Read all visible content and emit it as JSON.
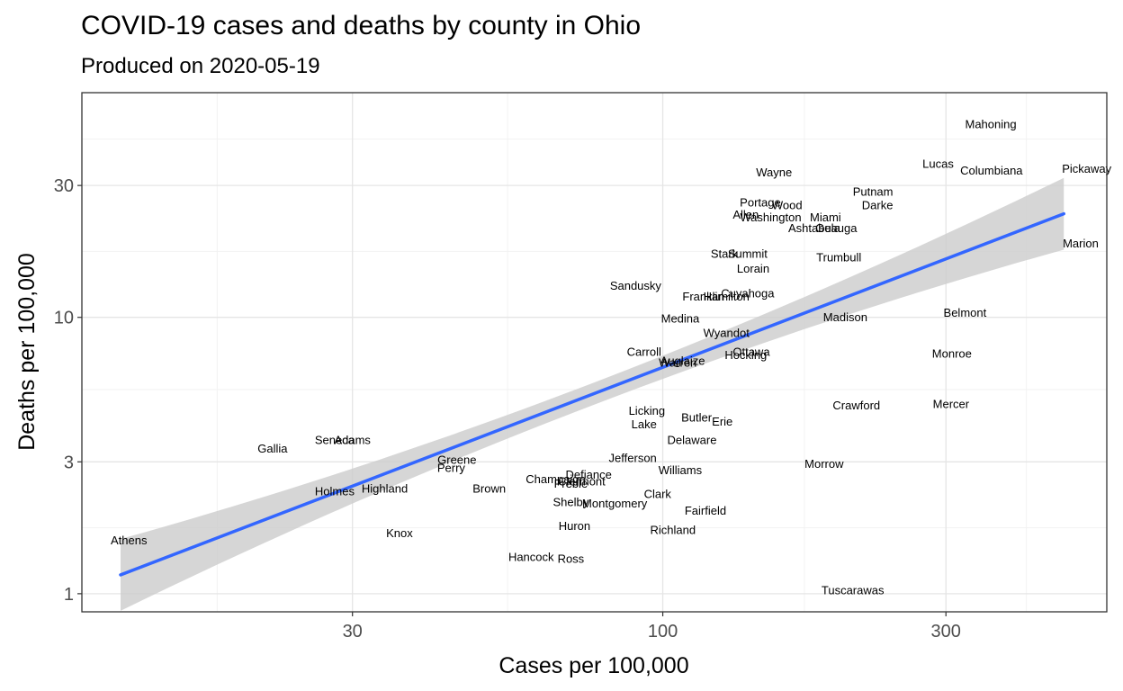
{
  "header": {
    "title": "COVID-19 cases and deaths by county in Ohio",
    "subtitle": "Produced on 2020-05-19"
  },
  "chart_data": {
    "type": "scatter",
    "title": "COVID-19 cases and deaths by county in Ohio",
    "subtitle": "Produced on 2020-05-19",
    "xlabel": "Cases per 100,000",
    "ylabel": "Deaths per 100,000",
    "x_scale": "log10",
    "y_scale": "log10",
    "xlim": [
      10.5,
      560
    ],
    "ylim": [
      0.86,
      65
    ],
    "x_ticks": [
      30,
      100,
      300
    ],
    "y_ticks": [
      1,
      3,
      10,
      30
    ],
    "grid": true,
    "legend": "none",
    "point_style": "county name labels",
    "trend": {
      "method": "linear fit on log-log scale",
      "color": "#3366ff",
      "band_color": "#cccccc",
      "start": [
        12.2,
        1.17
      ],
      "end": [
        474,
        23.7
      ]
    },
    "points": [
      {
        "name": "Mahoning",
        "x": 357,
        "y": 50
      },
      {
        "name": "Lucas",
        "x": 291,
        "y": 36
      },
      {
        "name": "Columbiana",
        "x": 358,
        "y": 34
      },
      {
        "name": "Pickaway",
        "x": 518,
        "y": 34.5
      },
      {
        "name": "Wayne",
        "x": 154,
        "y": 33.5
      },
      {
        "name": "Putnam",
        "x": 226,
        "y": 28.5
      },
      {
        "name": "Darke",
        "x": 230,
        "y": 25.5
      },
      {
        "name": "Portage",
        "x": 146,
        "y": 26
      },
      {
        "name": "Wood",
        "x": 162,
        "y": 25.5
      },
      {
        "name": "Allen",
        "x": 138,
        "y": 23.5
      },
      {
        "name": "Washington",
        "x": 152,
        "y": 23
      },
      {
        "name": "Miami",
        "x": 188,
        "y": 23
      },
      {
        "name": "Ashtabula",
        "x": 180,
        "y": 21
      },
      {
        "name": "Geauga",
        "x": 196,
        "y": 21
      },
      {
        "name": "Marion",
        "x": 506,
        "y": 18.5
      },
      {
        "name": "Stark",
        "x": 127,
        "y": 17
      },
      {
        "name": "Summit",
        "x": 139,
        "y": 17
      },
      {
        "name": "Trumbull",
        "x": 198,
        "y": 16.5
      },
      {
        "name": "Lorain",
        "x": 142,
        "y": 15
      },
      {
        "name": "Sandusky",
        "x": 90,
        "y": 13
      },
      {
        "name": "Franklin",
        "x": 117,
        "y": 11.9
      },
      {
        "name": "Hamilton",
        "x": 128,
        "y": 11.9
      },
      {
        "name": "Cuyahoga",
        "x": 139,
        "y": 12.2
      },
      {
        "name": "Belmont",
        "x": 323,
        "y": 10.4
      },
      {
        "name": "Madison",
        "x": 203,
        "y": 10
      },
      {
        "name": "Medina",
        "x": 107,
        "y": 9.9
      },
      {
        "name": "Wyandot",
        "x": 128,
        "y": 8.8
      },
      {
        "name": "Carroll",
        "x": 93,
        "y": 7.5
      },
      {
        "name": "Ottawa",
        "x": 141,
        "y": 7.5
      },
      {
        "name": "Hocking",
        "x": 138,
        "y": 7.3
      },
      {
        "name": "Monroe",
        "x": 307,
        "y": 7.4
      },
      {
        "name": "Auglaize",
        "x": 108,
        "y": 6.95
      },
      {
        "name": "Warren",
        "x": 106,
        "y": 6.85
      },
      {
        "name": "Crawford",
        "x": 212,
        "y": 4.8
      },
      {
        "name": "Mercer",
        "x": 306,
        "y": 4.85
      },
      {
        "name": "Licking",
        "x": 94,
        "y": 4.6
      },
      {
        "name": "Butler",
        "x": 114,
        "y": 4.35
      },
      {
        "name": "Erie",
        "x": 126,
        "y": 4.2
      },
      {
        "name": "Lake",
        "x": 93,
        "y": 4.1
      },
      {
        "name": "Delaware",
        "x": 112,
        "y": 3.6
      },
      {
        "name": "Seneca",
        "x": 28,
        "y": 3.6
      },
      {
        "name": "Adams",
        "x": 30,
        "y": 3.6
      },
      {
        "name": "Gallia",
        "x": 22,
        "y": 3.35
      },
      {
        "name": "Jefferson",
        "x": 89,
        "y": 3.1
      },
      {
        "name": "Greene",
        "x": 45,
        "y": 3.05
      },
      {
        "name": "Perry",
        "x": 44,
        "y": 2.85
      },
      {
        "name": "Morrow",
        "x": 187,
        "y": 2.95
      },
      {
        "name": "Williams",
        "x": 107,
        "y": 2.8
      },
      {
        "name": "Defiance",
        "x": 75,
        "y": 2.7
      },
      {
        "name": "Champaign",
        "x": 66,
        "y": 2.6
      },
      {
        "name": "Clermont",
        "x": 73,
        "y": 2.55
      },
      {
        "name": "Preble",
        "x": 70,
        "y": 2.5
      },
      {
        "name": "Highland",
        "x": 34,
        "y": 2.4
      },
      {
        "name": "Holmes",
        "x": 28,
        "y": 2.35
      },
      {
        "name": "Brown",
        "x": 51,
        "y": 2.4
      },
      {
        "name": "Clark",
        "x": 98,
        "y": 2.3
      },
      {
        "name": "Shelby",
        "x": 70,
        "y": 2.15
      },
      {
        "name": "Montgomery",
        "x": 83,
        "y": 2.12
      },
      {
        "name": "Fairfield",
        "x": 118,
        "y": 2.0
      },
      {
        "name": "Huron",
        "x": 71,
        "y": 1.76
      },
      {
        "name": "Richland",
        "x": 104,
        "y": 1.7
      },
      {
        "name": "Knox",
        "x": 36,
        "y": 1.66
      },
      {
        "name": "Athens",
        "x": 12.6,
        "y": 1.56
      },
      {
        "name": "Hancock",
        "x": 60,
        "y": 1.36
      },
      {
        "name": "Ross",
        "x": 70,
        "y": 1.34
      },
      {
        "name": "Tuscarawas",
        "x": 209,
        "y": 1.03
      }
    ]
  }
}
